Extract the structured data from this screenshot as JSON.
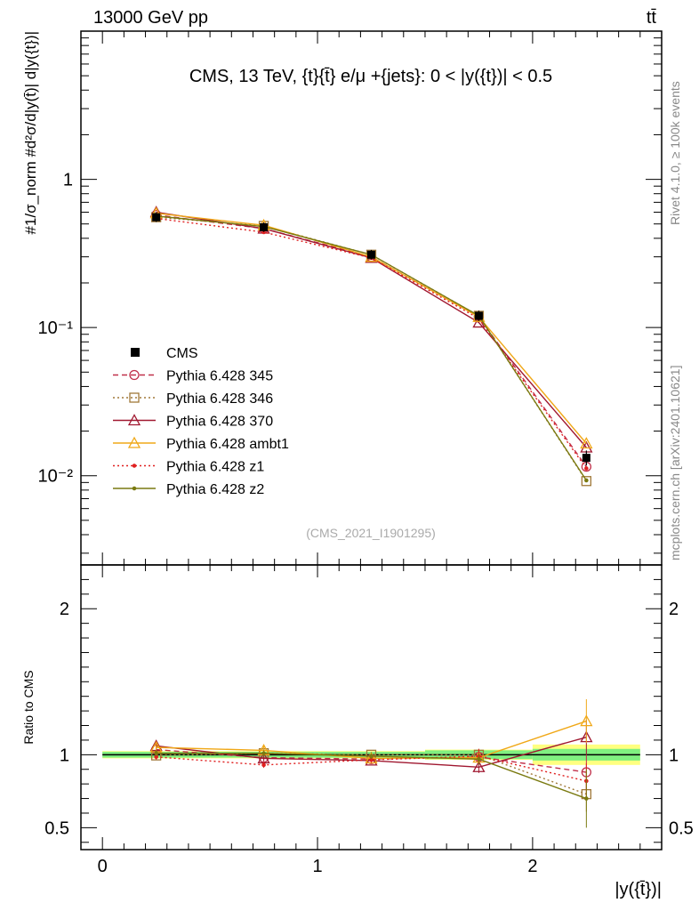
{
  "header": {
    "energy_label": "13000 GeV pp",
    "process_label": "tt̄"
  },
  "main_panel": {
    "title": "CMS, 13 TeV, {t}{t̄} e/μ +{jets}: 0 < |y({t})| < 0.5",
    "ylabel": "#1/σ_norm #d²σ/d|y(t̄)| d|y({t})|",
    "y_ticks": [
      {
        "value": 1,
        "label": "1"
      },
      {
        "value": 0.1,
        "label": "10⁻¹"
      },
      {
        "value": 0.01,
        "label": "10⁻²"
      }
    ],
    "analysis_id": "(CMS_2021_I1901295)"
  },
  "ratio_panel": {
    "ylabel": "Ratio to CMS",
    "y_ticks": [
      {
        "value": 2,
        "label": "2"
      },
      {
        "value": 1,
        "label": "1"
      },
      {
        "value": 0.5,
        "label": "0.5"
      }
    ]
  },
  "x_axis": {
    "label": "|y({t̄})|",
    "ticks": [
      {
        "value": 0,
        "label": "0"
      },
      {
        "value": 1,
        "label": "1"
      },
      {
        "value": 2,
        "label": "2"
      }
    ]
  },
  "side_labels": {
    "rivet": "Rivet 4.1.0, ≥ 100k events",
    "source": "mcplots.cern.ch [arXiv:2401.10621]"
  },
  "chart_data": {
    "type": "line",
    "x_range": [
      -0.1,
      2.6
    ],
    "y_range_main": [
      0.0025,
      10
    ],
    "y_scale_main": "log",
    "y_range_ratio": [
      0.35,
      2.3
    ],
    "x": [
      0.25,
      0.75,
      1.25,
      1.75,
      2.25
    ],
    "bin_edges": [
      0,
      0.5,
      1.0,
      1.5,
      2.0,
      2.5
    ],
    "data": {
      "name": "CMS",
      "values": [
        0.555,
        0.475,
        0.31,
        0.12,
        0.0132
      ],
      "errors": [
        0.01,
        0.008,
        0.006,
        0.003,
        0.0008
      ],
      "ratio_band_stat": [
        0.02,
        0.02,
        0.02,
        0.03,
        0.04
      ],
      "ratio_band_total": [
        0.025,
        0.025,
        0.025,
        0.035,
        0.07
      ]
    },
    "series": [
      {
        "name": "Pythia 6.428 345",
        "color": "#c0304a",
        "dash": "6,4",
        "marker": "circle",
        "values": [
          0.575,
          0.465,
          0.3,
          0.118,
          0.0115
        ],
        "ratio": [
          1.035,
          0.98,
          0.97,
          0.985,
          0.88
        ],
        "ratio_err": [
          0.02,
          0.02,
          0.02,
          0.04,
          0.12
        ]
      },
      {
        "name": "Pythia 6.428 346",
        "color": "#a07838",
        "dash": "2,3",
        "marker": "square",
        "values": [
          0.555,
          0.485,
          0.31,
          0.12,
          0.0092
        ],
        "ratio": [
          0.995,
          1.01,
          1.0,
          1.0,
          0.73
        ],
        "ratio_err": [
          0.02,
          0.02,
          0.02,
          0.04,
          0.12
        ]
      },
      {
        "name": "Pythia 6.428 370",
        "color": "#a01830",
        "dash": "",
        "marker": "triangle",
        "values": [
          0.6,
          0.465,
          0.295,
          0.108,
          0.0155
        ],
        "ratio": [
          1.06,
          0.975,
          0.96,
          0.915,
          1.12
        ],
        "ratio_err": [
          0.02,
          0.02,
          0.02,
          0.04,
          0.12
        ]
      },
      {
        "name": "Pythia 6.428 ambt1",
        "color": "#f0a818",
        "dash": "",
        "marker": "triangle",
        "values": [
          0.59,
          0.49,
          0.3,
          0.118,
          0.0165
        ],
        "ratio": [
          1.05,
          1.03,
          0.975,
          0.98,
          1.23
        ],
        "ratio_err": [
          0.02,
          0.03,
          0.02,
          0.04,
          0.15
        ]
      },
      {
        "name": "Pythia 6.428 z1",
        "color": "#e02020",
        "dash": "2,3",
        "marker": "dot",
        "values": [
          0.545,
          0.44,
          0.295,
          0.115,
          0.0112
        ],
        "ratio": [
          0.985,
          0.93,
          0.965,
          0.99,
          0.82
        ],
        "ratio_err": [
          0.02,
          0.02,
          0.02,
          0.05,
          0.12
        ]
      },
      {
        "name": "Pythia 6.428 z2",
        "color": "#7a7a10",
        "dash": "",
        "marker": "dot",
        "values": [
          0.565,
          0.48,
          0.31,
          0.12,
          0.0093
        ],
        "ratio": [
          1.01,
          1.01,
          0.99,
          0.97,
          0.7
        ],
        "ratio_err": [
          0.02,
          0.02,
          0.02,
          0.04,
          0.2
        ]
      }
    ]
  }
}
